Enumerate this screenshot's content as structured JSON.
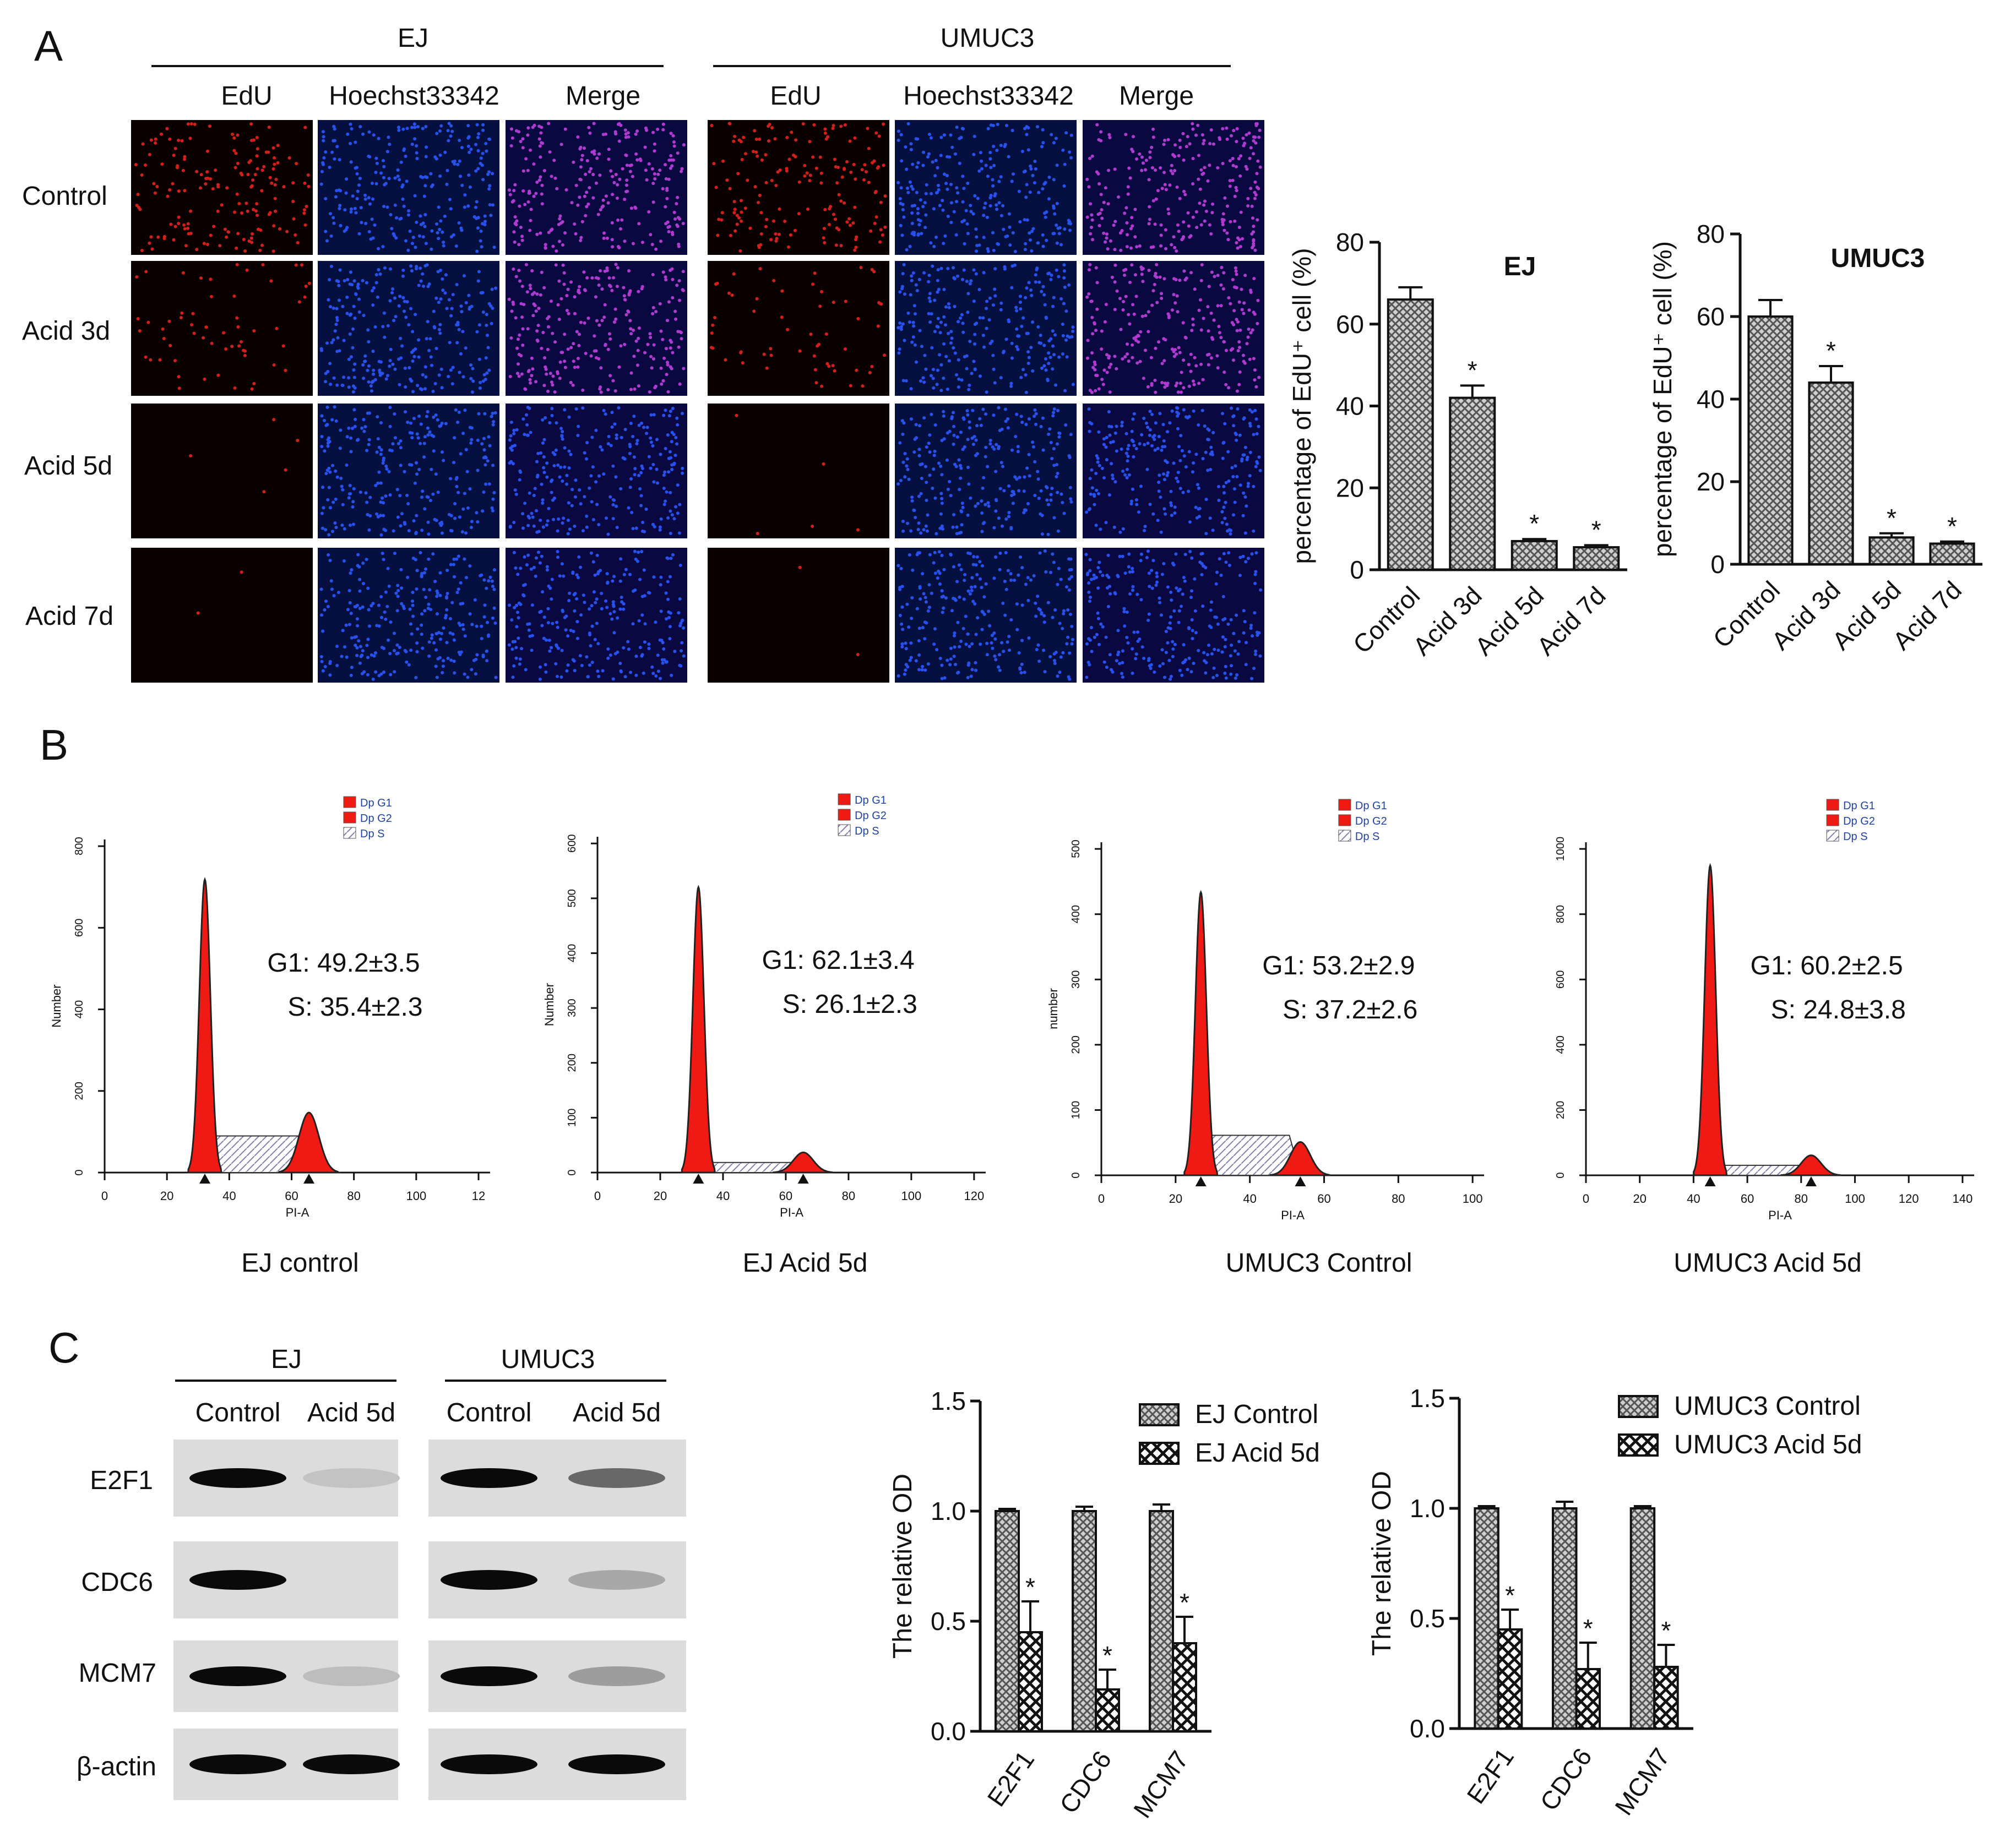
{
  "panel_letters": [
    "A",
    "B",
    "C"
  ],
  "panel_a": {
    "groups": [
      "EJ",
      "UMUC3"
    ],
    "channels": [
      "EdU",
      "Hoechst33342",
      "Merge"
    ],
    "rows": [
      "Control",
      "Acid 3d",
      "Acid 5d",
      "Acid 7d"
    ],
    "edu_density": [
      1.0,
      0.35,
      0.03,
      0.01
    ],
    "colors": {
      "edu": "#e8231f",
      "hoechst": "#2b58ff",
      "merge": "#c040e0"
    }
  },
  "panel_b": {
    "legend": [
      "Dp G1",
      "Dp G2",
      "Dp S"
    ],
    "xlabel": "PI-A",
    "plots": [
      {
        "ylabel": "Number",
        "yticks": [
          "0",
          "200",
          "400",
          "600",
          "800"
        ],
        "xticks": [
          "0",
          "20",
          "40",
          "60",
          "80",
          "100",
          "12"
        ],
        "g1_text": "G1: 49.2±3.5",
        "s_text": "S: 35.4±2.3",
        "caption": "EJ control"
      },
      {
        "ylabel": "Number",
        "yticks": [
          "0",
          "100",
          "200",
          "300",
          "400",
          "500",
          "600"
        ],
        "xticks": [
          "0",
          "20",
          "40",
          "60",
          "80",
          "100",
          "120"
        ],
        "g1_text": "G1: 62.1±3.4",
        "s_text": "S: 26.1±2.3",
        "caption": "EJ Acid 5d"
      },
      {
        "ylabel": "number",
        "yticks": [
          "0",
          "100",
          "200",
          "300",
          "400",
          "500"
        ],
        "xticks": [
          "0",
          "20",
          "40",
          "60",
          "80",
          "100"
        ],
        "g1_text": "G1: 53.2±2.9",
        "s_text": "S: 37.2±2.6",
        "caption": "UMUC3 Control"
      },
      {
        "ylabel": "",
        "yticks": [
          "0",
          "200",
          "400",
          "600",
          "800",
          "1000"
        ],
        "xticks": [
          "0",
          "20",
          "40",
          "60",
          "80",
          "100",
          "120",
          "140"
        ],
        "g1_text": "G1: 60.2±2.5",
        "s_text": "S: 24.8±3.8",
        "caption": "UMUC3 Acid 5d"
      }
    ]
  },
  "panel_c": {
    "groups": [
      "EJ",
      "UMUC3"
    ],
    "lanes": [
      "Control",
      "Acid 5d"
    ],
    "proteins": [
      "E2F1",
      "CDC6",
      "MCM7",
      "β-actin"
    ],
    "band_intensity": {
      "EJ": [
        [
          1.0,
          0.12
        ],
        [
          1.0,
          0.0
        ],
        [
          1.0,
          0.15
        ],
        [
          1.0,
          1.0
        ]
      ],
      "UMUC3": [
        [
          1.0,
          0.55
        ],
        [
          1.0,
          0.25
        ],
        [
          1.0,
          0.3
        ],
        [
          1.0,
          1.0
        ]
      ]
    }
  },
  "chart_data": [
    {
      "type": "bar",
      "title": "EJ",
      "ylabel": "percentage of EdU⁺ cell (%)",
      "categories": [
        "Control",
        "Acid 3d",
        "Acid 5d",
        "Acid 7d"
      ],
      "values": [
        66,
        42,
        7,
        5.5
      ],
      "errors": [
        3,
        3,
        0.5,
        0.5
      ],
      "significance": [
        "",
        "*",
        "*",
        "*"
      ],
      "ylim": [
        0,
        80
      ],
      "yticks": [
        "0",
        "20",
        "40",
        "60",
        "80"
      ]
    },
    {
      "type": "bar",
      "title": "UMUC3",
      "ylabel": "percentage of EdU⁺ cell (%)",
      "categories": [
        "Control",
        "Acid 3d",
        "Acid 5d",
        "Acid 7d"
      ],
      "values": [
        60,
        44,
        6.5,
        5
      ],
      "errors": [
        4,
        4,
        1,
        0.5
      ],
      "significance": [
        "",
        "*",
        "*",
        "*"
      ],
      "ylim": [
        0,
        80
      ],
      "yticks": [
        "0",
        "20",
        "40",
        "60",
        "80"
      ]
    },
    {
      "type": "bar",
      "ylabel": "The relative OD",
      "categories": [
        "E2F1",
        "CDC6",
        "MCM7"
      ],
      "series": [
        {
          "name": "EJ Control",
          "values": [
            1.0,
            1.0,
            1.0
          ],
          "errors": [
            0.01,
            0.02,
            0.03
          ]
        },
        {
          "name": "EJ Acid 5d",
          "values": [
            0.45,
            0.19,
            0.4
          ],
          "errors": [
            0.14,
            0.09,
            0.12
          ]
        }
      ],
      "significance": [
        "*",
        "*",
        "*"
      ],
      "ylim": [
        0,
        1.5
      ],
      "yticks": [
        "0.0",
        "0.5",
        "1.0",
        "1.5"
      ]
    },
    {
      "type": "bar",
      "ylabel": "The relative OD",
      "categories": [
        "E2F1",
        "CDC6",
        "MCM7"
      ],
      "series": [
        {
          "name": "UMUC3 Control",
          "values": [
            1.0,
            1.0,
            1.0
          ],
          "errors": [
            0.01,
            0.03,
            0.01
          ]
        },
        {
          "name": "UMUC3 Acid 5d",
          "values": [
            0.45,
            0.27,
            0.28
          ],
          "errors": [
            0.09,
            0.12,
            0.1
          ]
        }
      ],
      "significance": [
        "*",
        "*",
        "*"
      ],
      "ylim": [
        0,
        1.5
      ],
      "yticks": [
        "0.0",
        "0.5",
        "1.0",
        "1.5"
      ]
    }
  ]
}
